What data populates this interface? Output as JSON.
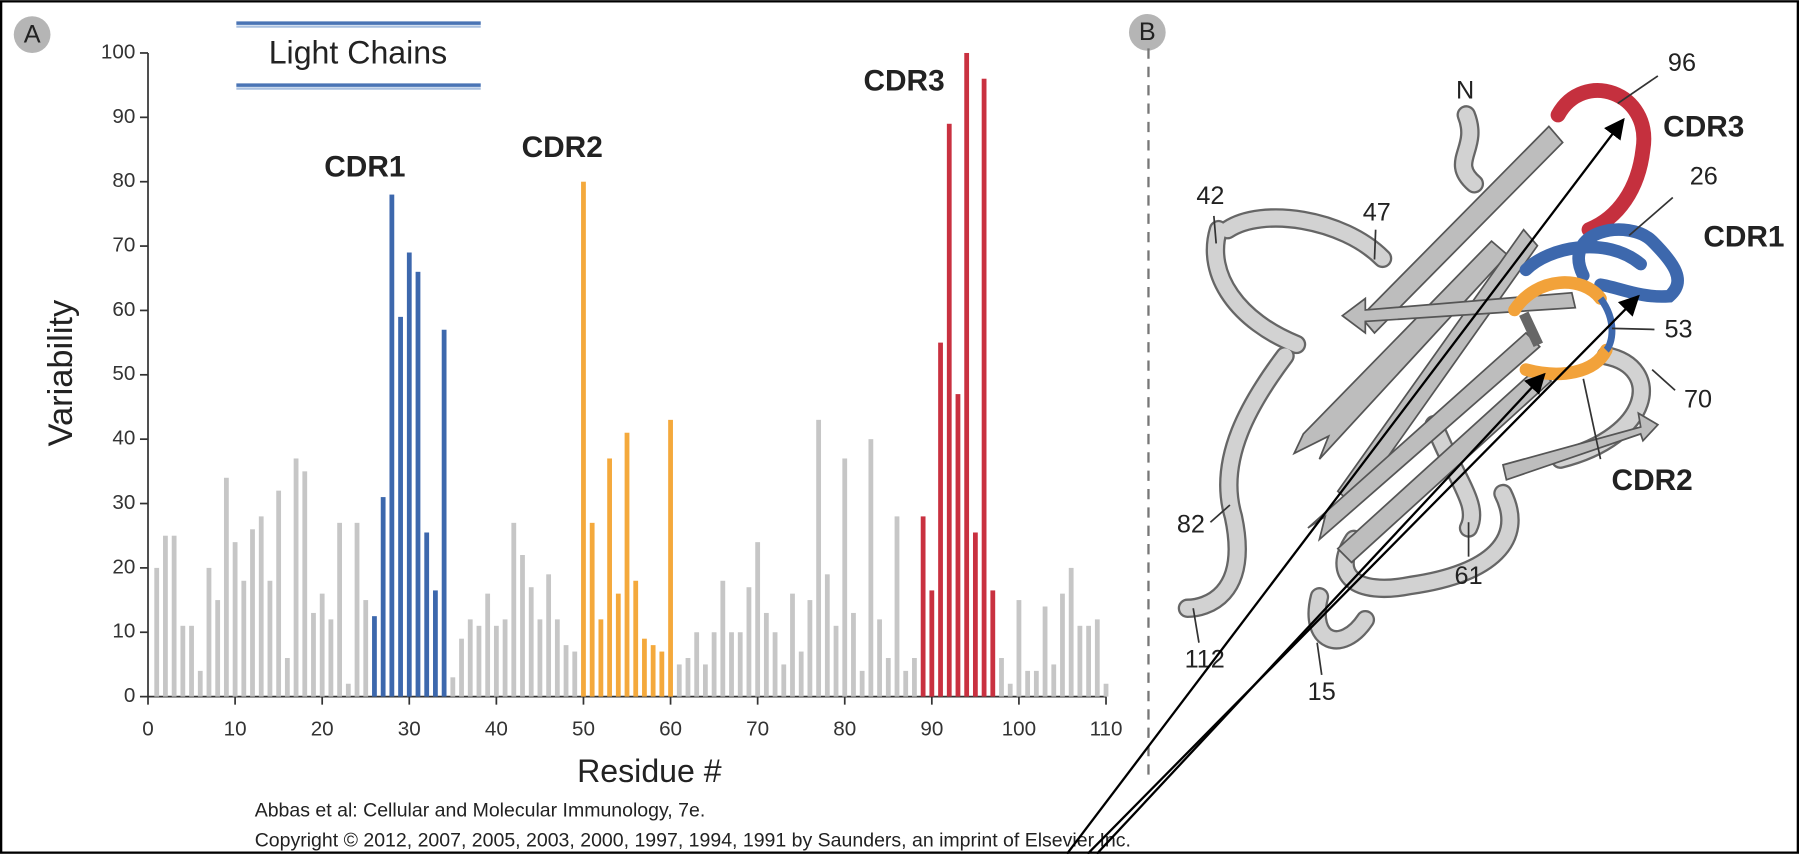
{
  "chart_data": {
    "type": "bar",
    "title": "Light Chains",
    "x_label": "Residue #",
    "y_label": "Variability",
    "annotations": [
      "CDR1",
      "CDR2",
      "CDR3"
    ],
    "x": [
      1,
      2,
      3,
      4,
      5,
      6,
      7,
      8,
      9,
      10,
      11,
      12,
      13,
      14,
      15,
      16,
      17,
      18,
      19,
      20,
      21,
      22,
      23,
      24,
      25,
      26,
      27,
      28,
      29,
      30,
      31,
      32,
      33,
      34,
      35,
      36,
      37,
      38,
      39,
      40,
      41,
      42,
      43,
      44,
      45,
      46,
      47,
      48,
      49,
      50,
      51,
      52,
      53,
      54,
      55,
      56,
      57,
      58,
      59,
      60,
      61,
      62,
      63,
      64,
      65,
      66,
      67,
      68,
      69,
      70,
      71,
      72,
      73,
      74,
      75,
      76,
      77,
      78,
      79,
      80,
      81,
      82,
      83,
      84,
      85,
      86,
      87,
      88,
      89,
      90,
      91,
      92,
      93,
      94,
      95,
      96,
      97,
      98,
      99,
      100,
      101,
      102,
      103,
      104,
      105,
      106,
      107,
      108,
      109,
      110
    ],
    "values": [
      20,
      25,
      25,
      11,
      11,
      4,
      20,
      15,
      34,
      24,
      18,
      26,
      28,
      18,
      32,
      6,
      37,
      35,
      13,
      16,
      12,
      27,
      2,
      27,
      15,
      12.5,
      31,
      78,
      59,
      69,
      66,
      25.5,
      16.5,
      57,
      3,
      9,
      12,
      11,
      16,
      11,
      12,
      27,
      22,
      17,
      12,
      19,
      12,
      8,
      7,
      80,
      27,
      12,
      37,
      16,
      41,
      18,
      9,
      8,
      7,
      43,
      5,
      6,
      10,
      5,
      10,
      18,
      10,
      10,
      17,
      24,
      13,
      10,
      5,
      16,
      7,
      15,
      43,
      19,
      11,
      37,
      13,
      4,
      40,
      12,
      6,
      28,
      4,
      6,
      28,
      16.5,
      55,
      89,
      47,
      100,
      25.5,
      96,
      16.5,
      6,
      2,
      15,
      4,
      4,
      14,
      5,
      16,
      20,
      11,
      11,
      12,
      2
    ],
    "colors": [
      "#c6c6c6",
      "#c6c6c6",
      "#c6c6c6",
      "#c6c6c6",
      "#c6c6c6",
      "#c6c6c6",
      "#c6c6c6",
      "#c6c6c6",
      "#c6c6c6",
      "#c6c6c6",
      "#c6c6c6",
      "#c6c6c6",
      "#c6c6c6",
      "#c6c6c6",
      "#c6c6c6",
      "#c6c6c6",
      "#c6c6c6",
      "#c6c6c6",
      "#c6c6c6",
      "#c6c6c6",
      "#c6c6c6",
      "#c6c6c6",
      "#c6c6c6",
      "#c6c6c6",
      "#c6c6c6",
      "#3d68ad",
      "#3d68ad",
      "#3d68ad",
      "#3d68ad",
      "#3d68ad",
      "#3d68ad",
      "#3d68ad",
      "#3d68ad",
      "#3d68ad",
      "#c6c6c6",
      "#c6c6c6",
      "#c6c6c6",
      "#c6c6c6",
      "#c6c6c6",
      "#c6c6c6",
      "#c6c6c6",
      "#c6c6c6",
      "#c6c6c6",
      "#c6c6c6",
      "#c6c6c6",
      "#c6c6c6",
      "#c6c6c6",
      "#c6c6c6",
      "#c6c6c6",
      "#f4a93c",
      "#f4a93c",
      "#f4a93c",
      "#f4a93c",
      "#f4a93c",
      "#f4a93c",
      "#f4a93c",
      "#f4a93c",
      "#f4a93c",
      "#f4a93c",
      "#f4a93c",
      "#c6c6c6",
      "#c6c6c6",
      "#c6c6c6",
      "#c6c6c6",
      "#c6c6c6",
      "#c6c6c6",
      "#c6c6c6",
      "#c6c6c6",
      "#c6c6c6",
      "#c6c6c6",
      "#c6c6c6",
      "#c6c6c6",
      "#c6c6c6",
      "#c6c6c6",
      "#c6c6c6",
      "#c6c6c6",
      "#c6c6c6",
      "#c6c6c6",
      "#c6c6c6",
      "#c6c6c6",
      "#c6c6c6",
      "#c6c6c6",
      "#c6c6c6",
      "#c6c6c6",
      "#c6c6c6",
      "#c6c6c6",
      "#c6c6c6",
      "#c6c6c6",
      "#c93140",
      "#c93140",
      "#c93140",
      "#c93140",
      "#c93140",
      "#c93140",
      "#c93140",
      "#c93140",
      "#c93140",
      "#c6c6c6",
      "#c6c6c6",
      "#c6c6c6",
      "#c6c6c6",
      "#c6c6c6",
      "#c6c6c6",
      "#c6c6c6",
      "#c6c6c6",
      "#c6c6c6",
      "#c6c6c6",
      "#c6c6c6",
      "#c6c6c6",
      "#c6c6c6"
    ],
    "xlim": [
      0,
      110
    ],
    "xticks": [
      0,
      10,
      20,
      30,
      40,
      50,
      60,
      70,
      80,
      90,
      100,
      110
    ],
    "ylim": [
      0,
      100
    ],
    "yticks": [
      0,
      10,
      20,
      30,
      40,
      50,
      60,
      70,
      80,
      90,
      100
    ],
    "grid": false
  },
  "panel_labels": [
    "A",
    "B"
  ],
  "diagram": {
    "labels": [
      "N",
      "42",
      "47",
      "96",
      "26",
      "53",
      "70",
      "61",
      "82",
      "112",
      "15",
      "CDR3",
      "CDR1",
      "CDR2"
    ]
  },
  "citation": [
    "Abbas et al: Cellular and Molecular Immunology, 7e.",
    "Copyright © 2012, 2007, 2005, 2003, 2000, 1997, 1994, 1991 by Saunders, an imprint of Elsevier Inc."
  ]
}
